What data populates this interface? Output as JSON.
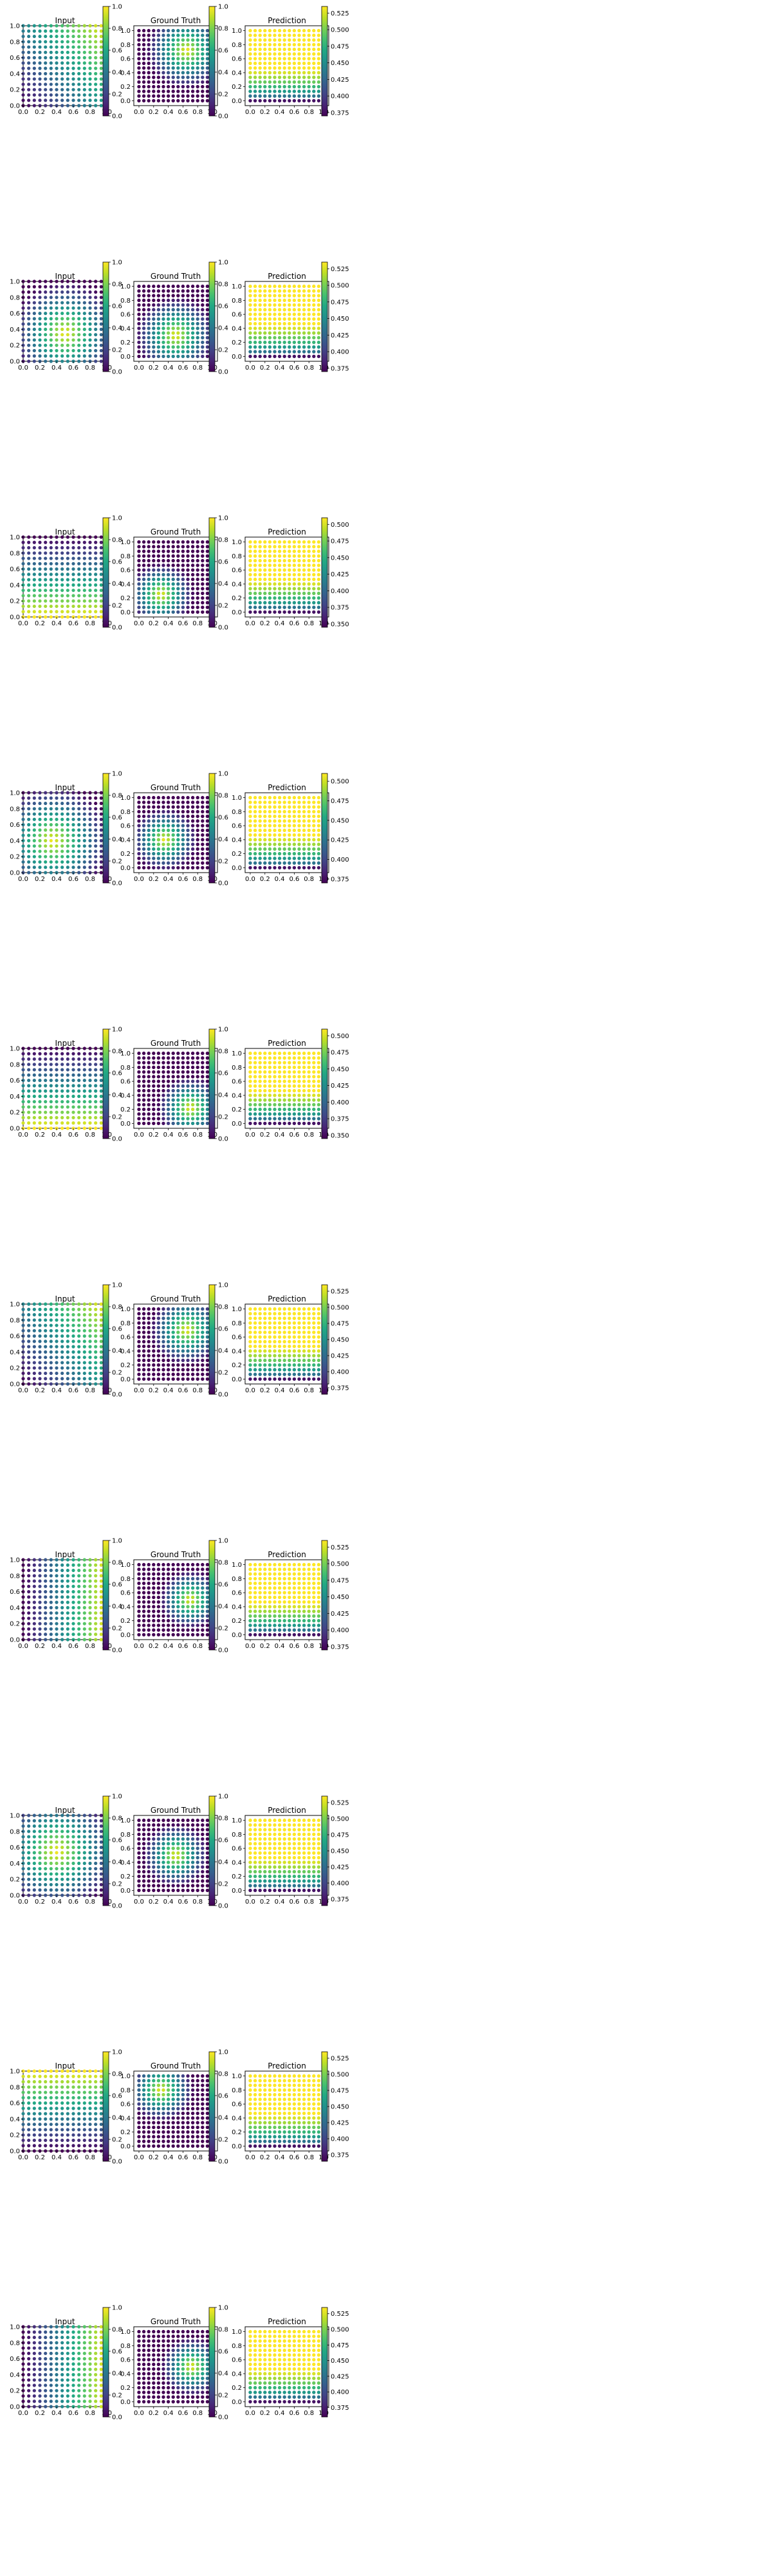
{
  "colormap": "viridis",
  "axis_titles": [
    "Input",
    "Ground Truth",
    "Prediction"
  ],
  "chart_data": {
    "type": "scatter",
    "layout": {
      "rows": 10,
      "cols": 3
    },
    "grid_points_per_axis": 16,
    "xlim": [
      0.0,
      1.0
    ],
    "ylim": [
      0.0,
      1.0
    ],
    "axis_ticks": [
      "0.0",
      "0.2",
      "0.4",
      "0.6",
      "0.8",
      "1.0"
    ],
    "input_colorbar_ticks": [
      "0.0",
      "0.2",
      "0.4",
      "0.6",
      "0.8",
      "1.0"
    ],
    "rows": [
      {
        "input": {
          "pattern": "diagonal",
          "dir": [
            1,
            0.8
          ],
          "lo": 0.0,
          "hi": 1.0
        },
        "truth": {
          "blob": [
            0.65,
            0.72
          ],
          "spread": 0.55
        },
        "truth_colorbar": {
          "range": [
            0,
            1
          ],
          "ticks": [
            "0.0",
            "0.2",
            "0.4",
            "0.6",
            "0.8",
            "1.0"
          ]
        },
        "prediction": {
          "mode": "bottom",
          "range": [
            0.37,
            0.535
          ]
        },
        "pred_colorbar": {
          "range": [
            0.37,
            0.535
          ],
          "ticks": [
            "0.375",
            "0.400",
            "0.425",
            "0.450",
            "0.475",
            "0.500",
            "0.525"
          ]
        }
      },
      {
        "input": {
          "pattern": "blob",
          "center": [
            0.5,
            0.35
          ],
          "spread": 0.65
        },
        "truth": {
          "blob": [
            0.5,
            0.3
          ],
          "spread": 0.55
        },
        "truth_colorbar": {
          "range": [
            0,
            1
          ],
          "ticks": [
            "0.0",
            "0.2",
            "0.4",
            "0.6",
            "0.8",
            "1.0"
          ]
        },
        "prediction": {
          "mode": "bottom",
          "range": [
            0.37,
            0.535
          ]
        },
        "pred_colorbar": {
          "range": [
            0.37,
            0.535
          ],
          "ticks": [
            "0.375",
            "0.400",
            "0.425",
            "0.450",
            "0.475",
            "0.500",
            "0.525"
          ]
        }
      },
      {
        "input": {
          "pattern": "bottom",
          "lo": 0.0,
          "hi": 1.0
        },
        "truth": {
          "blob": [
            0.3,
            0.25
          ],
          "spread": 0.45
        },
        "truth_colorbar": {
          "range": [
            0,
            1
          ],
          "ticks": [
            "0.0",
            "0.2",
            "0.4",
            "0.6",
            "0.8",
            "1.0"
          ]
        },
        "prediction": {
          "mode": "bottom",
          "range": [
            0.345,
            0.51
          ]
        },
        "pred_colorbar": {
          "range": [
            0.345,
            0.51
          ],
          "ticks": [
            "0.350",
            "0.375",
            "0.400",
            "0.425",
            "0.450",
            "0.475",
            "0.500"
          ]
        }
      },
      {
        "input": {
          "pattern": "blob",
          "center": [
            0.35,
            0.4
          ],
          "spread": 0.7
        },
        "truth": {
          "blob": [
            0.35,
            0.4
          ],
          "spread": 0.45
        },
        "truth_colorbar": {
          "range": [
            0,
            1
          ],
          "ticks": [
            "0.0",
            "0.2",
            "0.4",
            "0.6",
            "0.8",
            "1.0"
          ]
        },
        "prediction": {
          "mode": "bottom",
          "range": [
            0.37,
            0.51
          ]
        },
        "pred_colorbar": {
          "range": [
            0.37,
            0.51
          ],
          "ticks": [
            "0.375",
            "0.400",
            "0.425",
            "0.450",
            "0.475",
            "0.500"
          ]
        }
      },
      {
        "input": {
          "pattern": "bottom",
          "lo": 0.0,
          "hi": 1.0
        },
        "truth": {
          "blob": [
            0.7,
            0.22
          ],
          "spread": 0.45
        },
        "truth_colorbar": {
          "range": [
            0,
            1
          ],
          "ticks": [
            "0.0",
            "0.2",
            "0.4",
            "0.6",
            "0.8",
            "1.0"
          ]
        },
        "prediction": {
          "mode": "bottom",
          "range": [
            0.345,
            0.51
          ]
        },
        "pred_colorbar": {
          "range": [
            0.345,
            0.51
          ],
          "ticks": [
            "0.350",
            "0.375",
            "0.400",
            "0.425",
            "0.450",
            "0.475",
            "0.500"
          ]
        }
      },
      {
        "input": {
          "pattern": "diagonal",
          "dir": [
            1,
            0.8
          ],
          "lo": 0.0,
          "hi": 1.0
        },
        "truth": {
          "blob": [
            0.65,
            0.7
          ],
          "spread": 0.5
        },
        "truth_colorbar": {
          "range": [
            0,
            1
          ],
          "ticks": [
            "0.0",
            "0.2",
            "0.4",
            "0.6",
            "0.8",
            "1.0"
          ]
        },
        "prediction": {
          "mode": "bottom",
          "range": [
            0.365,
            0.535
          ]
        },
        "pred_colorbar": {
          "range": [
            0.365,
            0.535
          ],
          "ticks": [
            "0.375",
            "0.400",
            "0.425",
            "0.450",
            "0.475",
            "0.500",
            "0.525"
          ]
        }
      },
      {
        "input": {
          "pattern": "right",
          "lo": 0.0,
          "hi": 1.0
        },
        "truth": {
          "blob": [
            0.7,
            0.5
          ],
          "spread": 0.42
        },
        "truth_colorbar": {
          "range": [
            0,
            1
          ],
          "ticks": [
            "0.0",
            "0.2",
            "0.4",
            "0.6",
            "0.8",
            "1.0"
          ]
        },
        "prediction": {
          "mode": "bottom",
          "range": [
            0.37,
            0.535
          ]
        },
        "pred_colorbar": {
          "range": [
            0.37,
            0.535
          ],
          "ticks": [
            "0.375",
            "0.400",
            "0.425",
            "0.450",
            "0.475",
            "0.500",
            "0.525"
          ]
        }
      },
      {
        "input": {
          "pattern": "blob",
          "center": [
            0.4,
            0.55
          ],
          "spread": 0.75
        },
        "truth": {
          "blob": [
            0.5,
            0.5
          ],
          "spread": 0.45
        },
        "truth_colorbar": {
          "range": [
            0,
            1
          ],
          "ticks": [
            "0.0",
            "0.2",
            "0.4",
            "0.6",
            "0.8",
            "1.0"
          ]
        },
        "prediction": {
          "mode": "bottom",
          "range": [
            0.365,
            0.535
          ]
        },
        "pred_colorbar": {
          "range": [
            0.365,
            0.535
          ],
          "ticks": [
            "0.375",
            "0.400",
            "0.425",
            "0.450",
            "0.475",
            "0.500",
            "0.525"
          ]
        }
      },
      {
        "input": {
          "pattern": "top",
          "lo": 0.0,
          "hi": 1.0
        },
        "truth": {
          "blob": [
            0.3,
            0.8
          ],
          "spread": 0.45
        },
        "truth_colorbar": {
          "range": [
            0,
            1
          ],
          "ticks": [
            "0.0",
            "0.2",
            "0.4",
            "0.6",
            "0.8",
            "1.0"
          ]
        },
        "prediction": {
          "mode": "bottom",
          "range": [
            0.365,
            0.535
          ]
        },
        "pred_colorbar": {
          "range": [
            0.365,
            0.535
          ],
          "ticks": [
            "0.375",
            "0.400",
            "0.425",
            "0.450",
            "0.475",
            "0.500",
            "0.525"
          ]
        }
      },
      {
        "input": {
          "pattern": "right",
          "lo": 0.0,
          "hi": 1.0
        },
        "truth": {
          "blob": [
            0.72,
            0.5
          ],
          "spread": 0.42
        },
        "truth_colorbar": {
          "range": [
            0,
            1
          ],
          "ticks": [
            "0.0",
            "0.2",
            "0.4",
            "0.6",
            "0.8",
            "1.0"
          ]
        },
        "prediction": {
          "mode": "bottom",
          "range": [
            0.36,
            0.535
          ]
        },
        "pred_colorbar": {
          "range": [
            0.36,
            0.535
          ],
          "ticks": [
            "0.375",
            "0.400",
            "0.425",
            "0.450",
            "0.475",
            "0.500",
            "0.525"
          ]
        }
      }
    ]
  }
}
